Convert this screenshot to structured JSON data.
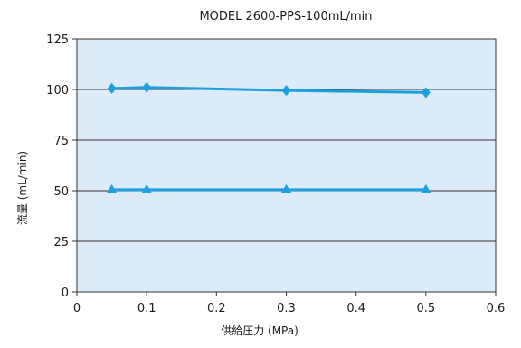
{
  "chart_data": {
    "type": "line",
    "title": "MODEL 2600-PPS-100mL/min",
    "xlabel": "供給圧力 (MPa)",
    "ylabel": "流量 (mL/min)",
    "xlim": [
      0,
      0.6
    ],
    "ylim": [
      0,
      125
    ],
    "x_ticks": [
      0,
      0.1,
      0.2,
      0.3,
      0.4,
      0.5,
      0.6
    ],
    "y_ticks": [
      0,
      25,
      50,
      75,
      100,
      125
    ],
    "grid": "horizontal",
    "legend": "none",
    "plot_background": "#dcebf8",
    "line_color": "#1ca0e0",
    "series": [
      {
        "marker": "diamond",
        "x": [
          0.05,
          0.1,
          0.3,
          0.5
        ],
        "y": [
          100.5,
          101,
          99.5,
          98.5
        ]
      },
      {
        "marker": "triangle",
        "x": [
          0.05,
          0.1,
          0.3,
          0.5
        ],
        "y": [
          50.5,
          50.5,
          50.5,
          50.5
        ]
      }
    ]
  }
}
